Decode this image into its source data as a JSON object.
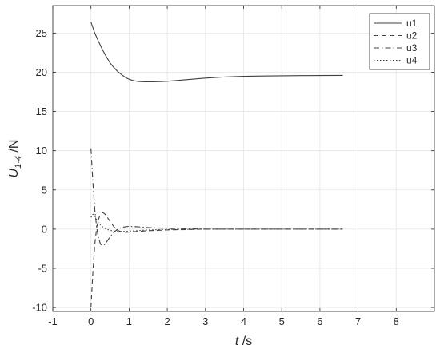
{
  "chart_data": {
    "type": "line",
    "xlabel": {
      "italic": "t",
      "rest": " /s"
    },
    "ylabel": {
      "italic": "U",
      "sub": "1-4",
      "rest": " /N"
    },
    "xlim": [
      -1,
      9
    ],
    "ylim": [
      -10.5,
      28.5
    ],
    "xticks": [
      -1,
      0,
      1,
      2,
      3,
      4,
      5,
      6,
      7,
      8
    ],
    "yticks": [
      -10,
      -5,
      0,
      5,
      10,
      15,
      20,
      25
    ],
    "grid": true,
    "legend_position": "top-right",
    "colors": {
      "line": "#404040",
      "axis": "#262626",
      "grid": "#e6e6e6",
      "legend_border": "#262626"
    },
    "series": [
      {
        "name": "u1",
        "style": "solid",
        "x": [
          0,
          0.1,
          0.2,
          0.3,
          0.4,
          0.5,
          0.6,
          0.7,
          0.8,
          0.9,
          1.0,
          1.1,
          1.2,
          1.3,
          1.4,
          1.6,
          1.8,
          2.0,
          2.5,
          3.0,
          3.5,
          4.0,
          4.5,
          5.0,
          5.5,
          6.0,
          6.6
        ],
        "y": [
          26.4,
          25.0,
          23.9,
          22.9,
          22.0,
          21.2,
          20.6,
          20.1,
          19.7,
          19.35,
          19.1,
          18.95,
          18.85,
          18.8,
          18.78,
          18.78,
          18.8,
          18.85,
          19.05,
          19.25,
          19.4,
          19.48,
          19.52,
          19.55,
          19.57,
          19.58,
          19.6
        ]
      },
      {
        "name": "u2",
        "style": "dashed",
        "x": [
          0,
          0.05,
          0.1,
          0.15,
          0.2,
          0.25,
          0.3,
          0.35,
          0.4,
          0.5,
          0.6,
          0.7,
          0.8,
          0.9,
          1.0,
          1.2,
          1.5,
          2.0,
          2.5,
          3.0,
          4.0,
          5.0,
          6.6
        ],
        "y": [
          -10,
          -5.5,
          -2.0,
          0.2,
          1.3,
          1.9,
          2.1,
          2.0,
          1.7,
          1.0,
          0.3,
          -0.15,
          -0.35,
          -0.4,
          -0.38,
          -0.3,
          -0.2,
          -0.1,
          -0.05,
          0,
          0,
          0,
          0
        ]
      },
      {
        "name": "u3",
        "style": "dashdot",
        "x": [
          0,
          0.05,
          0.1,
          0.15,
          0.2,
          0.25,
          0.3,
          0.35,
          0.4,
          0.5,
          0.6,
          0.7,
          0.8,
          0.9,
          1.0,
          1.2,
          1.5,
          2.0,
          2.5,
          3.0,
          4.0,
          5.0,
          6.6
        ],
        "y": [
          10.3,
          6.0,
          2.5,
          0.2,
          -1.2,
          -1.9,
          -2.1,
          -2.0,
          -1.7,
          -1.0,
          -0.4,
          0.0,
          0.2,
          0.3,
          0.35,
          0.3,
          0.2,
          0.1,
          0.05,
          0,
          0,
          0,
          0
        ]
      },
      {
        "name": "u4",
        "style": "dotted",
        "x": [
          0,
          0.05,
          0.1,
          0.15,
          0.2,
          0.3,
          0.4,
          0.5,
          0.6,
          0.8,
          1.0,
          1.2,
          1.5,
          2.0,
          3.0,
          4.0,
          5.0,
          6.6
        ],
        "y": [
          1.5,
          1.9,
          1.7,
          1.2,
          0.8,
          0.3,
          0.0,
          -0.15,
          -0.25,
          -0.3,
          -0.25,
          -0.2,
          -0.1,
          -0.05,
          0,
          0,
          0,
          0
        ]
      }
    ]
  }
}
